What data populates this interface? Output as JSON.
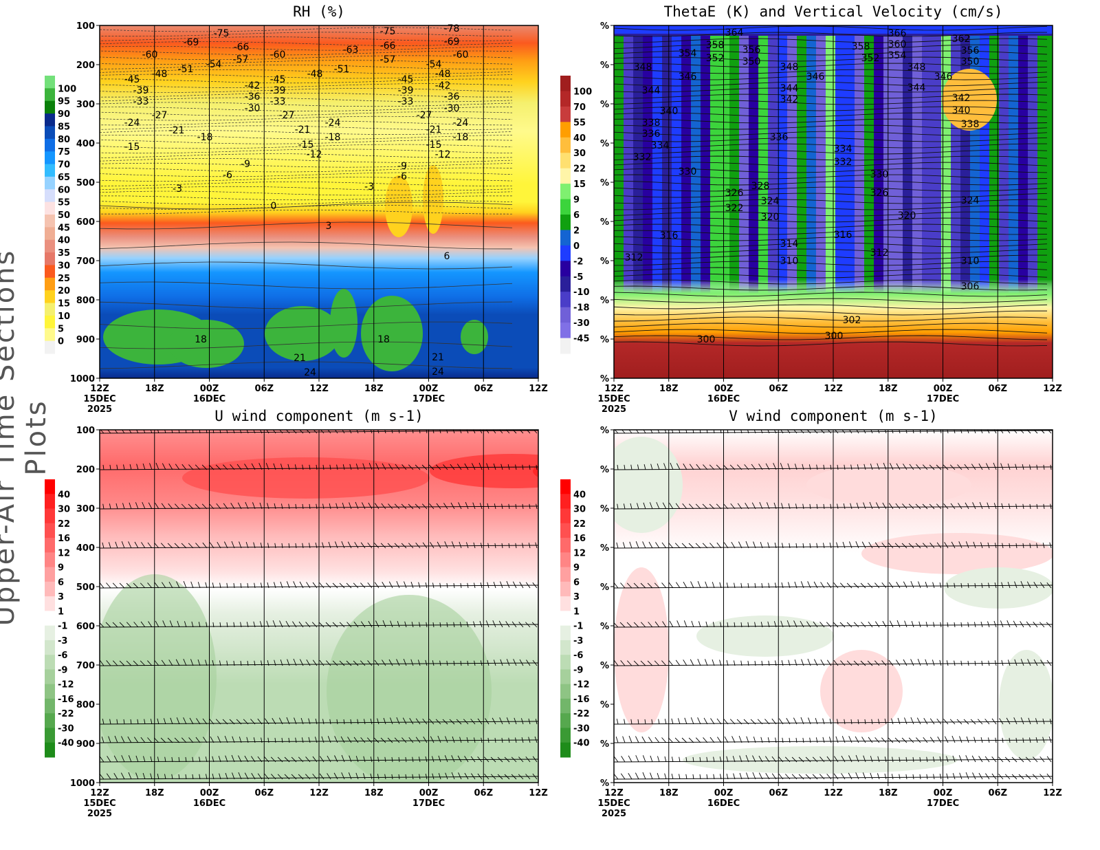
{
  "side_label": "Upper-Air Time Sections Plots",
  "x_axis": {
    "ticks": [
      "12Z",
      "18Z",
      "00Z",
      "06Z",
      "12Z",
      "18Z",
      "00Z",
      "06Z",
      "12Z"
    ],
    "dates": [
      "15DEC",
      "16DEC",
      "17DEC"
    ],
    "year": "2025"
  },
  "panels": [
    {
      "title": "RH (%)",
      "y_ticks": [
        "100",
        "200",
        "300",
        "400",
        "500",
        "600",
        "700",
        "800",
        "900",
        "1000"
      ],
      "colorbar": {
        "labels": [
          "100",
          "95",
          "90",
          "85",
          "80",
          "75",
          "70",
          "65",
          "60",
          "55",
          "50",
          "45",
          "40",
          "35",
          "30",
          "25",
          "20",
          "15",
          "10",
          "5",
          "0"
        ],
        "colors": [
          "#73e07a",
          "#3cb43c",
          "#0a800a",
          "#0a2a8c",
          "#0b4cb8",
          "#0f6ee6",
          "#1496ff",
          "#32bcff",
          "#96d2ff",
          "#d6defc",
          "#fde2e2",
          "#f5c3b0",
          "#f0ae94",
          "#ea907f",
          "#e67868",
          "#fb5a1e",
          "#ff9e14",
          "#ffd21e",
          "#f5f06e",
          "#fff53a",
          "#fffa8c",
          "#f2f2f2"
        ]
      },
      "contour_labels": [
        "-75",
        "-69",
        "-66",
        "-60",
        "-57",
        "-54",
        "-51",
        "-48",
        "-45",
        "-39",
        "-33",
        "-27",
        "-24",
        "-21",
        "-18",
        "-15",
        "-9",
        "-6",
        "-3",
        "0",
        "3",
        "6",
        "18",
        "21",
        "24",
        "-60",
        "-45",
        "-42",
        "-39",
        "-36",
        "-33",
        "-30",
        "-27",
        "-48",
        "-51",
        "-63",
        "-21",
        "-24",
        "-18",
        "-15",
        "-12",
        "-3",
        "-75",
        "-66",
        "-57",
        "-78",
        "-69",
        "-60",
        "-54",
        "-48",
        "-45",
        "-42",
        "-39",
        "-36",
        "-33",
        "-30",
        "-27",
        "-24",
        "-21",
        "-18",
        "-15",
        "-12",
        "-9",
        "-6",
        "18",
        "21",
        "24"
      ]
    },
    {
      "title": "ThetaE (K) and Vertical Velocity (cm/s)",
      "y_ticks": [
        "%",
        "%",
        "%",
        "%",
        "%",
        "%",
        "%",
        "%",
        "%",
        "%"
      ],
      "colorbar": {
        "labels": [
          "100",
          "70",
          "55",
          "40",
          "30",
          "22",
          "15",
          "9",
          "6",
          "2",
          "0",
          "-2",
          "-5",
          "-10",
          "-18",
          "-30",
          "-45"
        ],
        "colors": [
          "#a01e1e",
          "#b42828",
          "#c83c3c",
          "#ff9e00",
          "#ffbe3c",
          "#ffe070",
          "#fff5a8",
          "#7ff070",
          "#3cd43c",
          "#10a010",
          "#1464d2",
          "#1e3cff",
          "#2800a0",
          "#2a1f9a",
          "#4a3dc8",
          "#7060d8",
          "#8070e6",
          "#f2f2f2"
        ]
      },
      "contour_labels": [
        "364",
        "358",
        "356",
        "354",
        "352",
        "350",
        "348",
        "348",
        "346",
        "346",
        "344",
        "344",
        "342",
        "340",
        "338",
        "336",
        "334",
        "336",
        "332",
        "330",
        "328",
        "326",
        "322",
        "324",
        "320",
        "316",
        "314",
        "312",
        "310",
        "300",
        "366",
        "362",
        "360",
        "358",
        "356",
        "354",
        "352",
        "350",
        "348",
        "346",
        "344",
        "342",
        "340",
        "338",
        "334",
        "332",
        "330",
        "326",
        "324",
        "320",
        "316",
        "312",
        "310",
        "306",
        "302",
        "300"
      ]
    },
    {
      "title": "U wind component (m s-1)",
      "y_ticks": [
        "100",
        "200",
        "300",
        "400",
        "500",
        "600",
        "700",
        "800",
        "900",
        "1000"
      ],
      "colorbar": {
        "labels": [
          "40",
          "30",
          "22",
          "16",
          "12",
          "9",
          "6",
          "3",
          "1",
          "-1",
          "-3",
          "-6",
          "-9",
          "-12",
          "-16",
          "-22",
          "-30",
          "-40"
        ],
        "colors": [
          "#ff0000",
          "#ff2020",
          "#ff3838",
          "#ff5050",
          "#ff6a6a",
          "#ff8585",
          "#ffa0a0",
          "#ffbaba",
          "#ffe0e0",
          "#ffffff",
          "#e6f0e2",
          "#d2e6cc",
          "#bcdcb4",
          "#a6d09c",
          "#8ec484",
          "#72b66a",
          "#56a84e",
          "#3a9a34",
          "#1e8c1a"
        ]
      },
      "contour_labels": []
    },
    {
      "title": "V wind component (m s-1)",
      "y_ticks": [
        "%",
        "%",
        "%",
        "%",
        "%",
        "%",
        "%",
        "%",
        "%",
        "%"
      ],
      "colorbar": {
        "labels": [
          "40",
          "30",
          "22",
          "16",
          "12",
          "9",
          "6",
          "3",
          "1",
          "-1",
          "-3",
          "-6",
          "-9",
          "-12",
          "-16",
          "-22",
          "-30",
          "-40"
        ],
        "colors": [
          "#ff0000",
          "#ff2020",
          "#ff3838",
          "#ff5050",
          "#ff6a6a",
          "#ff8585",
          "#ffa0a0",
          "#ffbaba",
          "#ffe0e0",
          "#ffffff",
          "#e6f0e2",
          "#d2e6cc",
          "#bcdcb4",
          "#a6d09c",
          "#8ec484",
          "#72b66a",
          "#56a84e",
          "#3a9a34",
          "#1e8c1a"
        ]
      },
      "contour_labels": []
    }
  ],
  "chart_data": [
    {
      "type": "heatmap",
      "title": "RH (%)",
      "ylabel": "",
      "y_range": [
        100,
        1000
      ],
      "y_inverted": true,
      "x_range": [
        "12Z 15DEC 2025",
        "12Z 17DEC 2025"
      ],
      "colorbar_levels": [
        0,
        5,
        10,
        15,
        20,
        25,
        30,
        35,
        40,
        45,
        50,
        55,
        60,
        65,
        70,
        75,
        80,
        85,
        90,
        95,
        100
      ],
      "overlay": "temperature contours (dashed below 0)"
    },
    {
      "type": "heatmap",
      "title": "ThetaE (K) and Vertical Velocity (cm/s)",
      "y_range": [
        100,
        1000
      ],
      "y_inverted": true,
      "colorbar_levels": [
        -45,
        -30,
        -18,
        -10,
        -5,
        -2,
        0,
        2,
        6,
        9,
        15,
        22,
        30,
        40,
        55,
        70,
        100
      ],
      "overlay": "ThetaE contours"
    },
    {
      "type": "heatmap",
      "title": "U wind component (m s-1)",
      "y_range": [
        100,
        1000
      ],
      "y_inverted": true,
      "colorbar_levels": [
        -40,
        -30,
        -22,
        -16,
        -12,
        -9,
        -6,
        -3,
        -1,
        1,
        3,
        6,
        9,
        12,
        16,
        22,
        30,
        40
      ],
      "overlay": "wind barbs"
    },
    {
      "type": "heatmap",
      "title": "V wind component (m s-1)",
      "y_range": [
        100,
        1000
      ],
      "y_inverted": true,
      "colorbar_levels": [
        -40,
        -30,
        -22,
        -16,
        -12,
        -9,
        -6,
        -3,
        -1,
        1,
        3,
        6,
        9,
        12,
        16,
        22,
        30,
        40
      ],
      "overlay": "wind barbs"
    }
  ]
}
